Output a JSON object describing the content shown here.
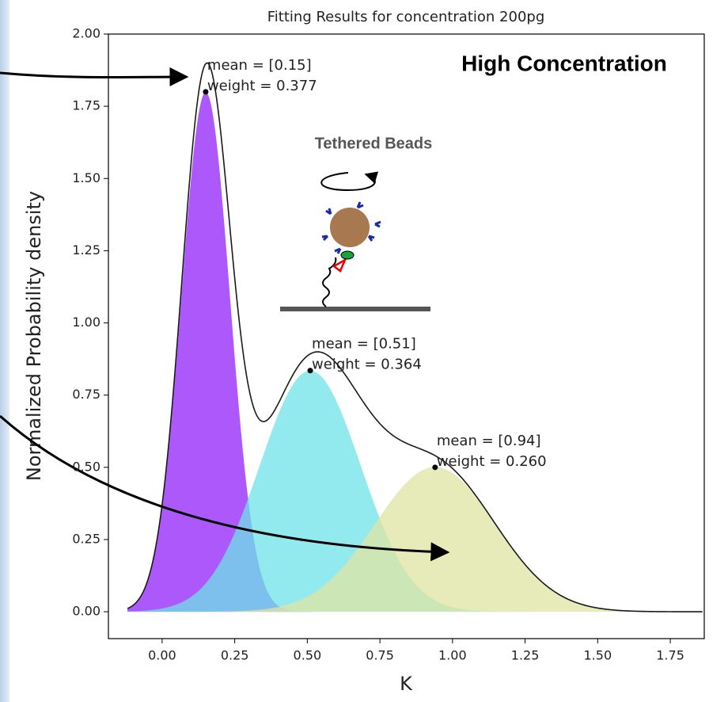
{
  "chart_data": {
    "type": "mixture",
    "title": "Fitting Results for concentration 200pg",
    "x_label": "K",
    "y_label": "Normalized Probability density",
    "headline": "High Concentration",
    "inset_label": "Tethered Beads",
    "xlim": [
      -0.185,
      1.867
    ],
    "ylim": [
      -0.093,
      2.0
    ],
    "xticks": [
      {
        "value": 0,
        "label": "0.00"
      },
      {
        "value": 0.25,
        "label": "0.25"
      },
      {
        "value": 0.5,
        "label": "0.50"
      },
      {
        "value": 0.75,
        "label": "0.75"
      },
      {
        "value": 1,
        "label": "1.00"
      },
      {
        "value": 1.25,
        "label": "1.25"
      },
      {
        "value": 1.5,
        "label": "1.50"
      },
      {
        "value": 1.75,
        "label": "1.75"
      }
    ],
    "yticks": [
      {
        "value": 0,
        "label": "0.00"
      },
      {
        "value": 0.25,
        "label": "0.25"
      },
      {
        "value": 0.5,
        "label": "0.50"
      },
      {
        "value": 0.75,
        "label": "0.75"
      },
      {
        "value": 1,
        "label": "1.00"
      },
      {
        "value": 1.25,
        "label": "1.25"
      },
      {
        "value": 1.5,
        "label": "1.50"
      },
      {
        "value": 1.75,
        "label": "1.75"
      },
      {
        "value": 2,
        "label": "2.00"
      }
    ],
    "components": [
      {
        "mean": 0.15,
        "weight": 0.377,
        "std": 0.0836,
        "peak": 1.8,
        "color": "#a94ffa",
        "annotation": [
          "mean = [0.15]",
          "weight = 0.377"
        ]
      },
      {
        "mean": 0.51,
        "weight": 0.364,
        "std": 0.174,
        "peak": 0.835,
        "color": "#6fe3e8",
        "annotation": [
          "mean = [0.51]",
          "weight = 0.364"
        ]
      },
      {
        "mean": 0.94,
        "weight": 0.26,
        "std": 0.207,
        "peak": 0.5,
        "color": "#dfe4a3",
        "annotation": [
          "mean = [0.94]",
          "weight = 0.260"
        ]
      }
    ],
    "total_color": "#1a1a1a"
  }
}
